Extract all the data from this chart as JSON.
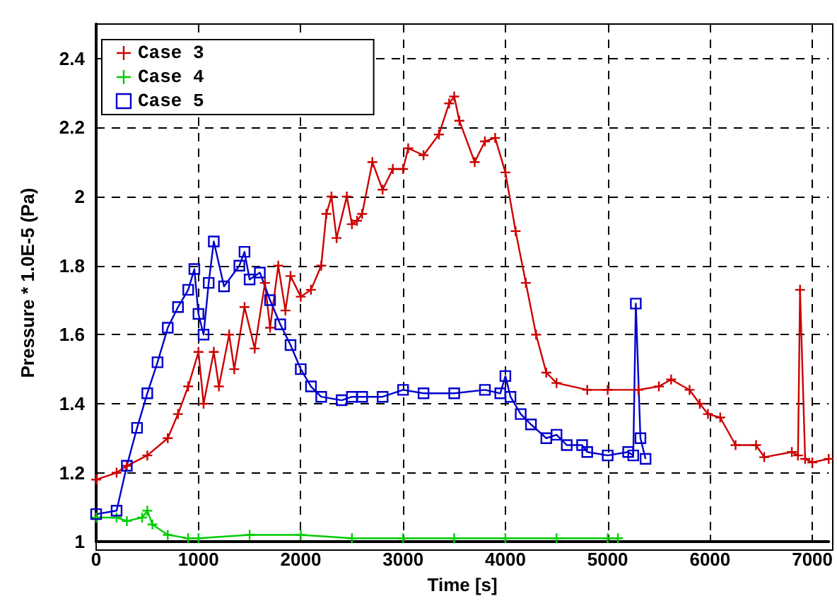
{
  "chart_data": {
    "type": "line",
    "xlabel": "Time [s]",
    "ylabel": "Pressure * 1.0E-5 (Pa)",
    "xlim": [
      0,
      7160
    ],
    "ylim": [
      1,
      2.5
    ],
    "xticks": [
      0,
      1000,
      2000,
      3000,
      4000,
      5000,
      6000,
      7000
    ],
    "yticks": [
      1,
      1.2,
      1.4,
      1.6,
      1.8,
      2,
      2.2,
      2.4
    ],
    "grid": true,
    "legend": "top left",
    "line_style": "solid",
    "series": [
      {
        "name": "Case 3",
        "color": "#cc0000",
        "marker": "cross",
        "x": [
          0,
          200,
          300,
          500,
          700,
          800,
          900,
          1000,
          1050,
          1150,
          1200,
          1300,
          1350,
          1450,
          1550,
          1650,
          1700,
          1780,
          1850,
          1900,
          2000,
          2100,
          2200,
          2250,
          2300,
          2350,
          2450,
          2500,
          2550,
          2600,
          2700,
          2800,
          2900,
          3000,
          3050,
          3200,
          3350,
          3450,
          3500,
          3550,
          3700,
          3800,
          3900,
          4000,
          4100,
          4200,
          4300,
          4400,
          4500,
          4800,
          5000,
          5300,
          5500,
          5620,
          5800,
          5900,
          5980,
          6100,
          6250,
          6450,
          6530,
          6800,
          6860,
          6880,
          6930,
          7000,
          7160
        ],
        "values": [
          1.18,
          1.2,
          1.22,
          1.25,
          1.3,
          1.37,
          1.45,
          1.55,
          1.4,
          1.55,
          1.45,
          1.6,
          1.5,
          1.68,
          1.56,
          1.75,
          1.62,
          1.8,
          1.67,
          1.77,
          1.71,
          1.73,
          1.8,
          1.95,
          2.0,
          1.88,
          2.0,
          1.92,
          1.93,
          1.95,
          2.1,
          2.02,
          2.08,
          2.08,
          2.14,
          2.12,
          2.18,
          2.27,
          2.29,
          2.22,
          2.1,
          2.16,
          2.17,
          2.07,
          1.9,
          1.75,
          1.6,
          1.49,
          1.46,
          1.44,
          1.44,
          1.44,
          1.45,
          1.47,
          1.44,
          1.4,
          1.37,
          1.36,
          1.28,
          1.28,
          1.245,
          1.26,
          1.25,
          1.73,
          1.24,
          1.23,
          1.24
        ]
      },
      {
        "name": "Case 4",
        "color": "#00cc00",
        "marker": "cross",
        "x": [
          0,
          200,
          300,
          450,
          500,
          550,
          700,
          900,
          1000,
          1500,
          2000,
          2500,
          3000,
          3500,
          4000,
          4500,
          5000,
          5100
        ],
        "values": [
          1.07,
          1.07,
          1.06,
          1.07,
          1.09,
          1.05,
          1.02,
          1.01,
          1.01,
          1.02,
          1.02,
          1.01,
          1.01,
          1.01,
          1.01,
          1.01,
          1.01,
          1.01
        ]
      },
      {
        "name": "Case 5",
        "color": "#0000cc",
        "marker": "square",
        "x": [
          0,
          200,
          300,
          400,
          500,
          600,
          700,
          800,
          900,
          960,
          1000,
          1050,
          1100,
          1150,
          1250,
          1400,
          1450,
          1500,
          1600,
          1700,
          1800,
          1900,
          2000,
          2100,
          2200,
          2400,
          2500,
          2600,
          2800,
          3000,
          3200,
          3500,
          3800,
          3950,
          4000,
          4050,
          4150,
          4250,
          4400,
          4500,
          4600,
          4750,
          4800,
          5000,
          5200,
          5250,
          5275,
          5320,
          5370
        ],
        "values": [
          1.08,
          1.09,
          1.22,
          1.33,
          1.43,
          1.52,
          1.62,
          1.68,
          1.73,
          1.79,
          1.66,
          1.6,
          1.75,
          1.87,
          1.74,
          1.8,
          1.84,
          1.76,
          1.78,
          1.7,
          1.63,
          1.57,
          1.5,
          1.45,
          1.42,
          1.41,
          1.42,
          1.42,
          1.42,
          1.44,
          1.43,
          1.43,
          1.44,
          1.43,
          1.48,
          1.42,
          1.37,
          1.34,
          1.3,
          1.31,
          1.28,
          1.28,
          1.26,
          1.25,
          1.26,
          1.25,
          1.69,
          1.3,
          1.24
        ]
      }
    ]
  }
}
